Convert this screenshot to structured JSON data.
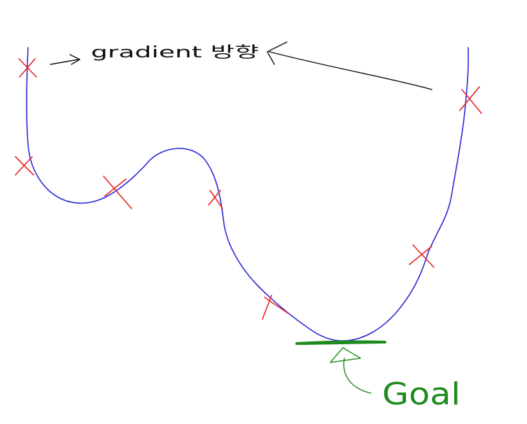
{
  "annotation": {
    "text": "gradient 방향"
  },
  "goal": {
    "text": "Goal"
  },
  "colors": {
    "curve": "#2a2ad6",
    "marker": "#e52424",
    "arrow": "#111111",
    "goal": "#1f8a1f",
    "background": "#ffffff"
  },
  "icons": {
    "marker": "x-mark-icon",
    "arrow": "hand-drawn-arrow-icon"
  }
}
